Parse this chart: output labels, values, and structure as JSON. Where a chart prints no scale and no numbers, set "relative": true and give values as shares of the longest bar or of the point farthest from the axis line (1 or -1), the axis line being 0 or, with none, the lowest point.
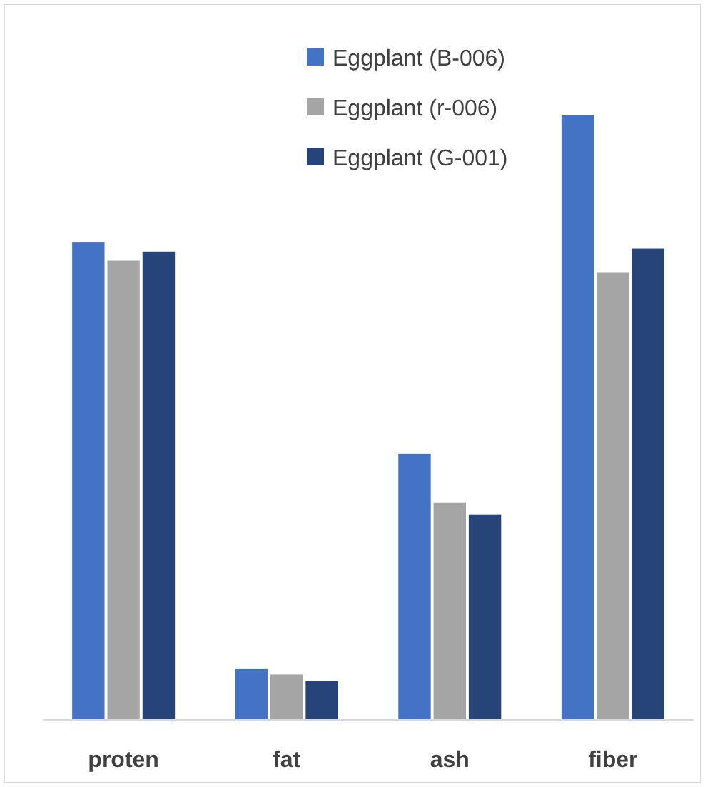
{
  "chart_data": {
    "type": "bar",
    "relative": true,
    "categories": [
      "proten",
      "fat",
      "ash",
      "fiber"
    ],
    "series": [
      {
        "name": "Eggplant (B-006)",
        "color": "#4472c4",
        "values": [
          0.79,
          0.085,
          0.44,
          1
        ]
      },
      {
        "name": "Eggplant (r-006)",
        "color": "#a5a5a5",
        "values": [
          0.76,
          0.075,
          0.36,
          0.74
        ]
      },
      {
        "name": "Eggplant (G-001)",
        "color": "#264478",
        "values": [
          0.775,
          0.064,
          0.34,
          0.78
        ]
      }
    ],
    "legend": "top",
    "grid": false
  }
}
